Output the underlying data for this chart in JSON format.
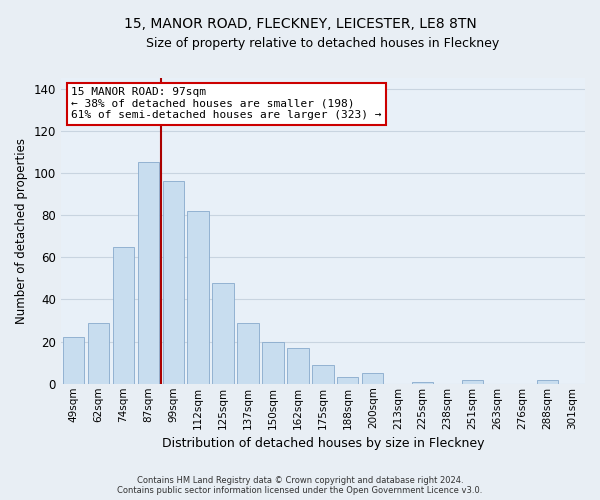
{
  "title": "15, MANOR ROAD, FLECKNEY, LEICESTER, LE8 8TN",
  "subtitle": "Size of property relative to detached houses in Fleckney",
  "xlabel": "Distribution of detached houses by size in Fleckney",
  "ylabel": "Number of detached properties",
  "bar_labels": [
    "49sqm",
    "62sqm",
    "74sqm",
    "87sqm",
    "99sqm",
    "112sqm",
    "125sqm",
    "137sqm",
    "150sqm",
    "162sqm",
    "175sqm",
    "188sqm",
    "200sqm",
    "213sqm",
    "225sqm",
    "238sqm",
    "251sqm",
    "263sqm",
    "276sqm",
    "288sqm",
    "301sqm"
  ],
  "bar_values": [
    22,
    29,
    65,
    105,
    96,
    82,
    48,
    29,
    20,
    17,
    9,
    3,
    5,
    0,
    1,
    0,
    2,
    0,
    0,
    2,
    0
  ],
  "bar_color": "#c8ddef",
  "bar_edge_color": "#88aacc",
  "highlight_bar_index": 4,
  "highlight_line_color": "#aa0000",
  "ylim": [
    0,
    145
  ],
  "yticks": [
    0,
    20,
    40,
    60,
    80,
    100,
    120,
    140
  ],
  "annotation_title": "15 MANOR ROAD: 97sqm",
  "annotation_line1": "← 38% of detached houses are smaller (198)",
  "annotation_line2": "61% of semi-detached houses are larger (323) →",
  "annotation_box_color": "#ffffff",
  "annotation_box_edge": "#cc0000",
  "footer_line1": "Contains HM Land Registry data © Crown copyright and database right 2024.",
  "footer_line2": "Contains public sector information licensed under the Open Government Licence v3.0.",
  "background_color": "#e8eef4",
  "plot_bg_color": "#e8f0f8",
  "grid_color": "#c8d4e0"
}
